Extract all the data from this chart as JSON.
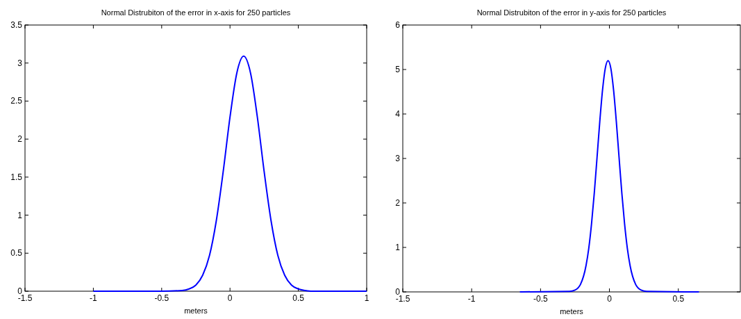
{
  "chart_data": [
    {
      "type": "line",
      "title": "Normal Distrubiton of the error in x-axis for 250 particles",
      "xlabel": "meters",
      "xlim": [
        -1.5,
        1
      ],
      "xticks": [
        -1.5,
        -1,
        -0.5,
        0,
        0.5,
        1
      ],
      "ylim": [
        0,
        3.5
      ],
      "yticks": [
        0,
        0.5,
        1,
        1.5,
        2,
        2.5,
        3,
        3.5
      ],
      "grid": false,
      "marker": "none",
      "line_style": "solid",
      "series": [
        {
          "color": "#0000ff",
          "x": [
            -1,
            -0.5,
            -0.35,
            -0.3,
            -0.25,
            -0.2,
            -0.15,
            -0.1,
            -0.05,
            0,
            0.05,
            0.1,
            0.15,
            0.2,
            0.25,
            0.3,
            0.35,
            0.4,
            0.45,
            0.5,
            0.55,
            0.6,
            1
          ],
          "values": [
            0,
            0,
            0.01,
            0.03,
            0.08,
            0.21,
            0.47,
            0.93,
            1.57,
            2.29,
            2.87,
            3.09,
            2.87,
            2.29,
            1.57,
            0.93,
            0.47,
            0.21,
            0.08,
            0.03,
            0.01,
            0,
            0
          ]
        }
      ]
    },
    {
      "type": "line",
      "title": "Normal Distrubiton of the error in y-axis for 250 particles",
      "xlabel": "meters",
      "xlim": [
        -1.5,
        0.95
      ],
      "xticks": [
        -1.5,
        -1,
        -0.5,
        0,
        0.5
      ],
      "ylim": [
        0,
        6
      ],
      "yticks": [
        0,
        1,
        2,
        3,
        4,
        5,
        6
      ],
      "grid": false,
      "marker": "none",
      "line_style": "solid",
      "series": [
        {
          "color": "#0000ff",
          "x": [
            -0.65,
            -0.29,
            -0.25,
            -0.21,
            -0.17,
            -0.15,
            -0.13,
            -0.11,
            -0.09,
            -0.07,
            -0.05,
            -0.03,
            -0.01,
            0.01,
            0.03,
            0.05,
            0.07,
            0.09,
            0.11,
            0.13,
            0.15,
            0.19,
            0.23,
            0.27,
            0.65
          ],
          "values": [
            0,
            0.01,
            0.04,
            0.17,
            0.59,
            0.98,
            1.53,
            2.22,
            3.02,
            3.83,
            4.54,
            5.03,
            5.2,
            5.03,
            4.54,
            3.83,
            3.02,
            2.22,
            1.53,
            0.98,
            0.59,
            0.17,
            0.04,
            0.01,
            0
          ]
        }
      ]
    }
  ]
}
